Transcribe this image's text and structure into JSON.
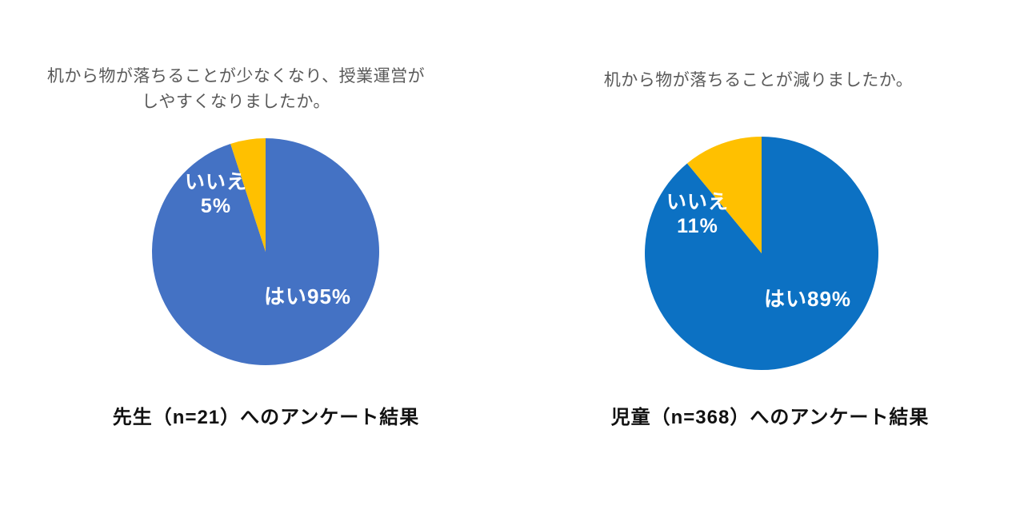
{
  "page": {
    "background": "#ffffff"
  },
  "chart_data": [
    {
      "type": "pie",
      "title": "机から物が落ちることが少なくなり、授業運営がしやすくなりましたか。",
      "title_lines": [
        "机から物が落ちることが少なくなり、授業運営が",
        "しやすくなりましたか。"
      ],
      "caption": "先生（n=21）へのアンケート結果",
      "categories": [
        "はい",
        "いいえ"
      ],
      "values": [
        95,
        5
      ],
      "unit": "%",
      "colors": [
        "#4472C4",
        "#FFC000"
      ],
      "start_angle_deg": 0,
      "direction": "clockwise",
      "legend": "none",
      "data_label_color": "#FFFFFF",
      "data_labels": {
        "yes": "はい95%",
        "no_line1": "いいえ",
        "no_line2": "5%"
      }
    },
    {
      "type": "pie",
      "title": "机から物が落ちることが減りましたか。",
      "title_lines": [
        "机から物が落ちることが減りましたか。"
      ],
      "caption": "児童（n=368）へのアンケート結果",
      "categories": [
        "はい",
        "いいえ"
      ],
      "values": [
        89,
        11
      ],
      "unit": "%",
      "colors": [
        "#0C71C3",
        "#FFC000"
      ],
      "start_angle_deg": 0,
      "direction": "clockwise",
      "legend": "none",
      "data_label_color": "#FFFFFF",
      "data_labels": {
        "yes": "はい89%",
        "no_line1": "いいえ",
        "no_line2": "11%"
      }
    }
  ],
  "title_color": "#595959",
  "caption_color": "#111111"
}
